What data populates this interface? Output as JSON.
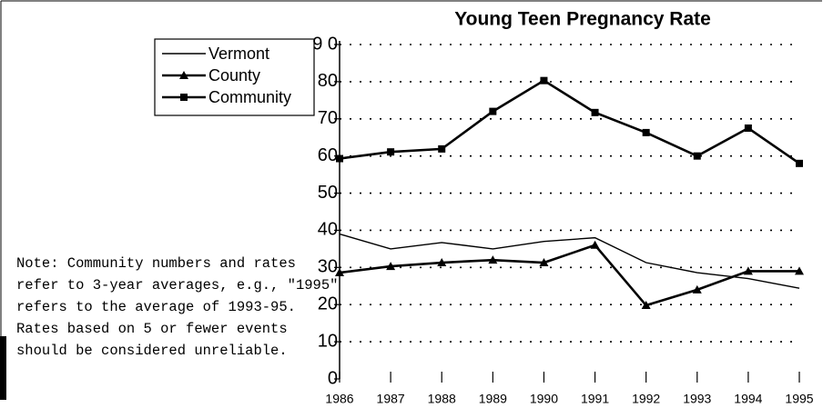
{
  "chart_data": {
    "type": "line",
    "title": "Young Teen Pregnancy Rate",
    "x": [
      1986,
      1987,
      1988,
      1989,
      1990,
      1991,
      1992,
      1993,
      1994,
      1995
    ],
    "xlim": [
      1986,
      1995
    ],
    "xticks": [
      1986,
      1987,
      1988,
      1989,
      1990,
      1991,
      1992,
      1993,
      1994,
      1995
    ],
    "ylim": [
      0,
      90
    ],
    "yticks": [
      0,
      10,
      20,
      30,
      40,
      50,
      60,
      70,
      80,
      {
        "value": 90,
        "label": "9 0"
      }
    ],
    "grid": true,
    "legend": "top-left",
    "series": [
      {
        "name": "Vermont",
        "color": "#000000",
        "marker": "none",
        "values": [
          39,
          35,
          36.7,
          35,
          37,
          38,
          31.3,
          28.6,
          27,
          24.4
        ]
      },
      {
        "name": "County",
        "color": "#000000",
        "marker": "triangle",
        "values": [
          28.6,
          30.3,
          31.3,
          32,
          31.3,
          36,
          19.8,
          24,
          29,
          29
        ]
      },
      {
        "name": "Community",
        "color": "#000000",
        "marker": "square",
        "values": [
          59.3,
          61.1,
          61.9,
          72,
          80.3,
          71.7,
          66.3,
          60,
          67.5,
          58
        ]
      }
    ],
    "annotations": [
      "Note: Community numbers and rates",
      "refer to 3-year averages, e.g., \"1995\"",
      "refers to the average of 1993-95.",
      "Rates based on 5 or fewer events",
      "should be considered unreliable."
    ]
  }
}
